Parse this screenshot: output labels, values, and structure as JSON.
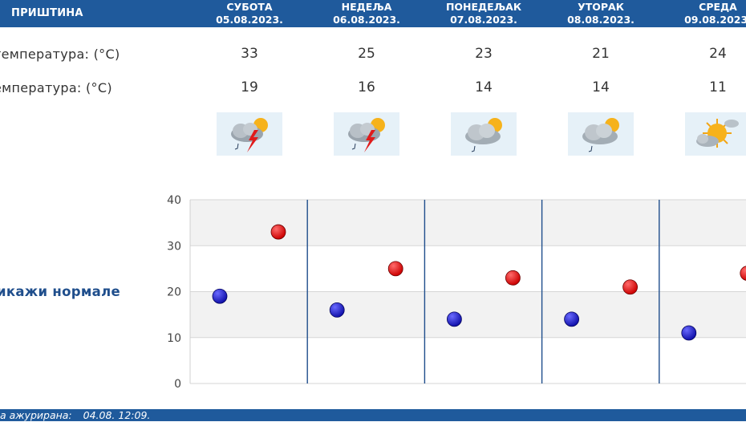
{
  "header": {
    "city": "ПРИШТИНА",
    "days": [
      {
        "name": "СУБОТА",
        "date": "05.08.2023."
      },
      {
        "name": "НЕДЕЉА",
        "date": "06.08.2023."
      },
      {
        "name": "ПОНЕДЕЉАК",
        "date": "07.08.2023."
      },
      {
        "name": "УТОРАК",
        "date": "08.08.2023."
      },
      {
        "name": "СРЕДА",
        "date": "09.08.2023."
      }
    ]
  },
  "rows": {
    "max_label": "температура: (°C)",
    "min_label": "емпература: (°C)",
    "icon_label": ":"
  },
  "icons": [
    "storm-icon",
    "storm-icon",
    "rain-icon",
    "rain-icon",
    "sun-cloud-icon"
  ],
  "norms_link": "икажи нормале",
  "footer": {
    "label": "а ажурирана:",
    "value": "04.08. 12:09."
  },
  "colors": {
    "header_bg": "#1f5a9c",
    "max_point": "#cc0000",
    "min_point": "#1010aa",
    "divider": "#1f4e8c"
  },
  "chart_data": {
    "type": "scatter",
    "categories": [
      "05.08.2023.",
      "06.08.2023.",
      "07.08.2023.",
      "08.08.2023.",
      "09.08.2023."
    ],
    "series": [
      {
        "values": [
          33,
          25,
          23,
          21,
          24
        ]
      },
      {
        "values": [
          19,
          16,
          14,
          14,
          11
        ]
      }
    ],
    "ylim": [
      0,
      40
    ],
    "yticks": [
      "0",
      "10",
      "20",
      "30",
      "40"
    ],
    "grid": true
  }
}
